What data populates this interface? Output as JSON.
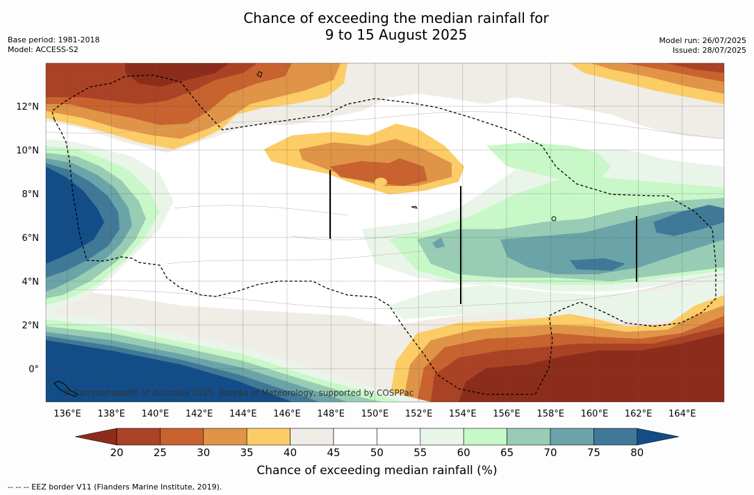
{
  "title": {
    "line1": "Chance of exceeding the median rainfall for",
    "line2": "9 to 15 August 2025"
  },
  "meta_left": {
    "base_period": "Base period: 1981-2018",
    "model": "Model: ACCESS-S2"
  },
  "meta_right": {
    "model_run": "Model run: 26/07/2025",
    "issued": "Issued: 28/07/2025"
  },
  "map": {
    "lon_labels": [
      "136°E",
      "138°E",
      "140°E",
      "142°E",
      "144°E",
      "146°E",
      "148°E",
      "150°E",
      "152°E",
      "154°E",
      "156°E",
      "158°E",
      "160°E",
      "162°E",
      "164°E"
    ],
    "lat_labels": [
      "12°N",
      "10°N",
      "8°N",
      "6°N",
      "4°N",
      "2°N",
      "0°"
    ],
    "copyright": "© Commonwealth of Australia 2025, Bureau of Meteorology, supported by COSPPac"
  },
  "colorbar": {
    "labels": [
      "20",
      "25",
      "30",
      "35",
      "40",
      "45",
      "50",
      "55",
      "60",
      "65",
      "70",
      "75",
      "80"
    ],
    "colors": {
      "below20": "#8c2d1c",
      "b20_25": "#aa4225",
      "b25_30": "#c8622f",
      "b30_35": "#e09448",
      "b35_40": "#fccc66",
      "b40_45": "#f0ece6",
      "b45_50": "#ffffff",
      "b50_55": "#ffffff",
      "b55_60": "#eaf5ea",
      "b60_65": "#c8f8c8",
      "b65_70": "#98ccb4",
      "b70_75": "#6aa4a8",
      "b75_80": "#407898",
      "above80": "#124d88"
    },
    "title": "Chance of exceeding median rainfall (%)"
  },
  "footer": "--  --  -- EEZ border V11 (Flanders Marine Institute, 2019)."
}
